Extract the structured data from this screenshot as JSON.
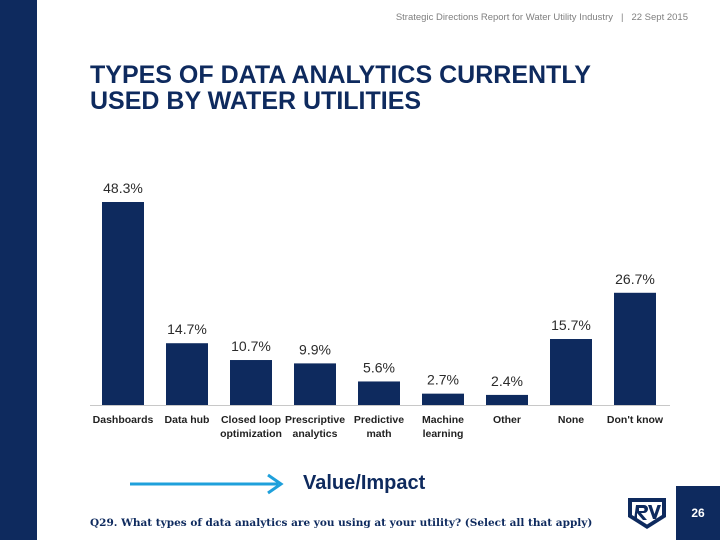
{
  "header": {
    "report": "Strategic Directions Report for Water Utility Industry",
    "separator": "|",
    "date": "22 Sept 2015"
  },
  "title": {
    "line1": "TYPES OF DATA ANALYTICS CURRENTLY",
    "line2": "USED BY WATER UTILITIES"
  },
  "value_impact": "Value/Impact",
  "question": "Q29. What types of data analytics are you using at your utility? (Select all that apply)",
  "page_number": "26",
  "colors": {
    "navy": "#0e2a5e",
    "arrow": "#1fa0db"
  },
  "chart_data": {
    "type": "bar",
    "title": "TYPES OF DATA ANALYTICS CURRENTLY USED BY WATER UTILITIES",
    "xlabel": "",
    "ylabel": "",
    "ylim": [
      0,
      50
    ],
    "categories": [
      [
        "Dashboards"
      ],
      [
        "Data hub"
      ],
      [
        "Closed loop",
        "optimization"
      ],
      [
        "Prescriptive",
        "analytics"
      ],
      [
        "Predictive",
        "math"
      ],
      [
        "Machine",
        "learning"
      ],
      [
        "Other"
      ],
      [
        "None"
      ],
      [
        "Don't know"
      ]
    ],
    "values": [
      48.3,
      14.7,
      10.7,
      9.9,
      5.6,
      2.7,
      2.4,
      15.7,
      26.7
    ],
    "labels": [
      "48.3%",
      "14.7%",
      "10.7%",
      "9.9%",
      "5.6%",
      "2.7%",
      "2.4%",
      "15.7%",
      "26.7%"
    ]
  }
}
